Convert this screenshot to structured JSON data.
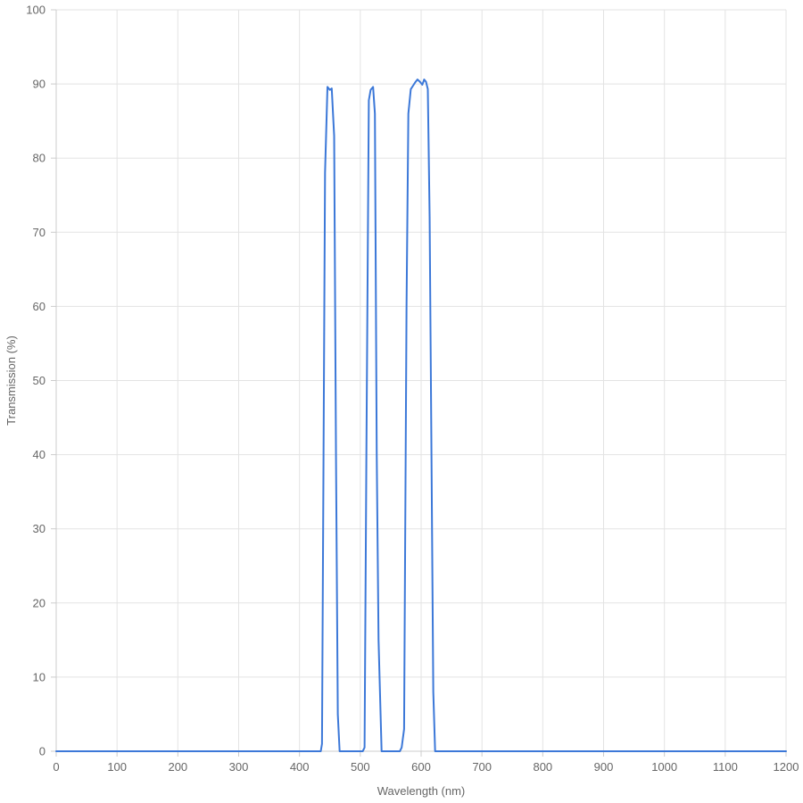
{
  "chart_data": {
    "type": "line",
    "title": "",
    "xlabel": "Wavelength (nm)",
    "ylabel": "Transmission (%)",
    "xlim": [
      0,
      1200
    ],
    "ylim": [
      0,
      100
    ],
    "x_ticks": [
      0,
      100,
      200,
      300,
      400,
      500,
      600,
      700,
      800,
      900,
      1000,
      1100,
      1200
    ],
    "y_ticks": [
      0,
      10,
      20,
      30,
      40,
      50,
      60,
      70,
      80,
      90,
      100
    ],
    "grid": true,
    "legend": "none",
    "series": [
      {
        "color": "#3c78d8",
        "points": [
          [
            0,
            0
          ],
          [
            100,
            0
          ],
          [
            200,
            0
          ],
          [
            300,
            0
          ],
          [
            400,
            0
          ],
          [
            435,
            0
          ],
          [
            437,
            1
          ],
          [
            442,
            78
          ],
          [
            446,
            89.6
          ],
          [
            450,
            89.2
          ],
          [
            453,
            89.4
          ],
          [
            457,
            83
          ],
          [
            460,
            40
          ],
          [
            463,
            5
          ],
          [
            466,
            0
          ],
          [
            504,
            0
          ],
          [
            507,
            0.5
          ],
          [
            510,
            40
          ],
          [
            514,
            87.8
          ],
          [
            517,
            89.2
          ],
          [
            521,
            89.6
          ],
          [
            524,
            86
          ],
          [
            527,
            40
          ],
          [
            530,
            15
          ],
          [
            535,
            0
          ],
          [
            565,
            0
          ],
          [
            568,
            0.5
          ],
          [
            572,
            3
          ],
          [
            576,
            60
          ],
          [
            579,
            86
          ],
          [
            583,
            89.3
          ],
          [
            587,
            89.8
          ],
          [
            591,
            90.3
          ],
          [
            594,
            90.6
          ],
          [
            598,
            90.3
          ],
          [
            602,
            89.9
          ],
          [
            605,
            90.6
          ],
          [
            608,
            90.3
          ],
          [
            611,
            89.3
          ],
          [
            614,
            72
          ],
          [
            617,
            40
          ],
          [
            620,
            8
          ],
          [
            623,
            0
          ],
          [
            700,
            0
          ],
          [
            800,
            0
          ],
          [
            900,
            0
          ],
          [
            1000,
            0
          ],
          [
            1100,
            0
          ],
          [
            1200,
            0
          ]
        ]
      }
    ]
  }
}
